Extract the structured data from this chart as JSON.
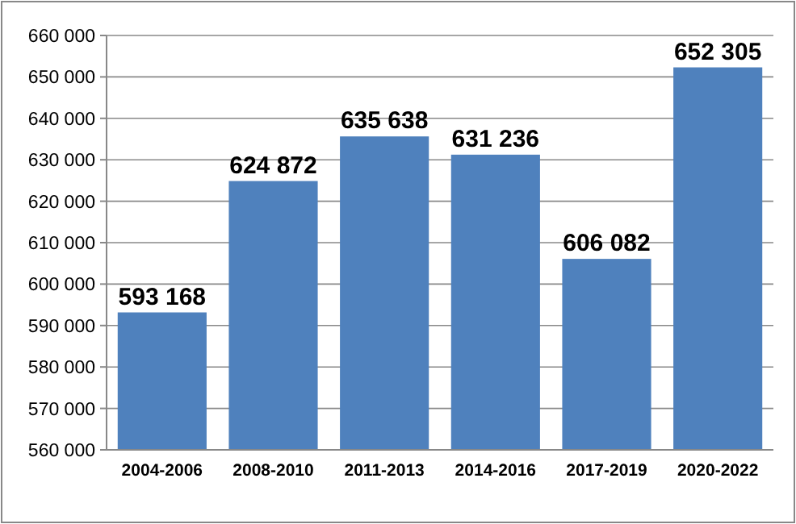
{
  "chart_data": {
    "type": "bar",
    "categories": [
      "2004-2006",
      "2008-2010",
      "2011-2013",
      "2014-2016",
      "2017-2019",
      "2020-2022"
    ],
    "values": [
      593168,
      624872,
      635638,
      631236,
      606082,
      652305
    ],
    "value_labels": [
      "593 168",
      "624 872",
      "635 638",
      "631 236",
      "606 082",
      "652 305"
    ],
    "color": "#4f81bd",
    "ylim": [
      560000,
      660000
    ],
    "yticks": [
      {
        "value": 560000,
        "label": "560 000"
      },
      {
        "value": 570000,
        "label": "570 000"
      },
      {
        "value": 580000,
        "label": "580 000"
      },
      {
        "value": 590000,
        "label": "590 000"
      },
      {
        "value": 600000,
        "label": "600 000"
      },
      {
        "value": 610000,
        "label": "610 000"
      },
      {
        "value": 620000,
        "label": "620 000"
      },
      {
        "value": 630000,
        "label": "630 000"
      },
      {
        "value": 640000,
        "label": "640 000"
      },
      {
        "value": 650000,
        "label": "650 000"
      },
      {
        "value": 660000,
        "label": "660 000"
      }
    ],
    "grid": "y"
  }
}
